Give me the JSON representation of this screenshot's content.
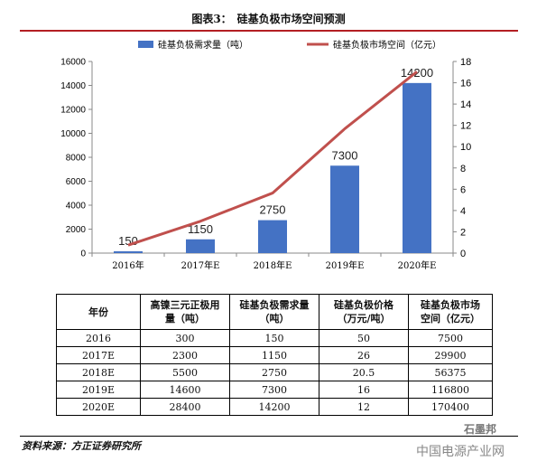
{
  "title": "图表3：　硅基负极市场空间预测",
  "chart_data": {
    "type": "bar+line",
    "categories": [
      "2016年",
      "2017年E",
      "2018年E",
      "2019年E",
      "2020年E"
    ],
    "series": [
      {
        "name": "硅基负极需求量（吨）",
        "type": "bar",
        "axis": "left",
        "color": "#4472c4",
        "values": [
          150,
          1150,
          2750,
          7300,
          14200
        ],
        "labels": [
          "150",
          "1150",
          "2750",
          "7300",
          "14200"
        ]
      },
      {
        "name": "硅基负极市场空间（亿元）",
        "type": "line",
        "axis": "right",
        "color": "#c0504d",
        "values": [
          0.75,
          2.99,
          5.64,
          11.68,
          17.04
        ]
      }
    ],
    "left_axis": {
      "ylim": [
        0,
        16000
      ],
      "ticks": [
        "0",
        "2000",
        "4000",
        "6000",
        "8000",
        "10000",
        "12000",
        "14000",
        "16000"
      ]
    },
    "right_axis": {
      "ylim": [
        0,
        18
      ],
      "ticks": [
        "0",
        "2",
        "4",
        "6",
        "8",
        "10",
        "12",
        "14",
        "16",
        "18"
      ]
    },
    "legend_position": "top"
  },
  "table": {
    "headers": [
      [
        "年份"
      ],
      [
        "高镍三元正极用",
        "量（吨）"
      ],
      [
        "硅基负极需求量",
        "（吨）"
      ],
      [
        "硅基负极价格",
        "（万元/吨）"
      ],
      [
        "硅基负极市场",
        "空间（亿元）"
      ]
    ],
    "rows": [
      [
        "2016",
        "300",
        "150",
        "50",
        "7500"
      ],
      [
        "2017E",
        "2300",
        "1150",
        "26",
        "29900"
      ],
      [
        "2018E",
        "5500",
        "2750",
        "20.5",
        "56375"
      ],
      [
        "2019E",
        "14600",
        "7300",
        "16",
        "116800"
      ],
      [
        "2020E",
        "28400",
        "14200",
        "12",
        "170400"
      ]
    ]
  },
  "source": "资料来源：方正证券研究所",
  "watermark_top": "石墨邦",
  "watermark_bottom": "中国电源产业网"
}
